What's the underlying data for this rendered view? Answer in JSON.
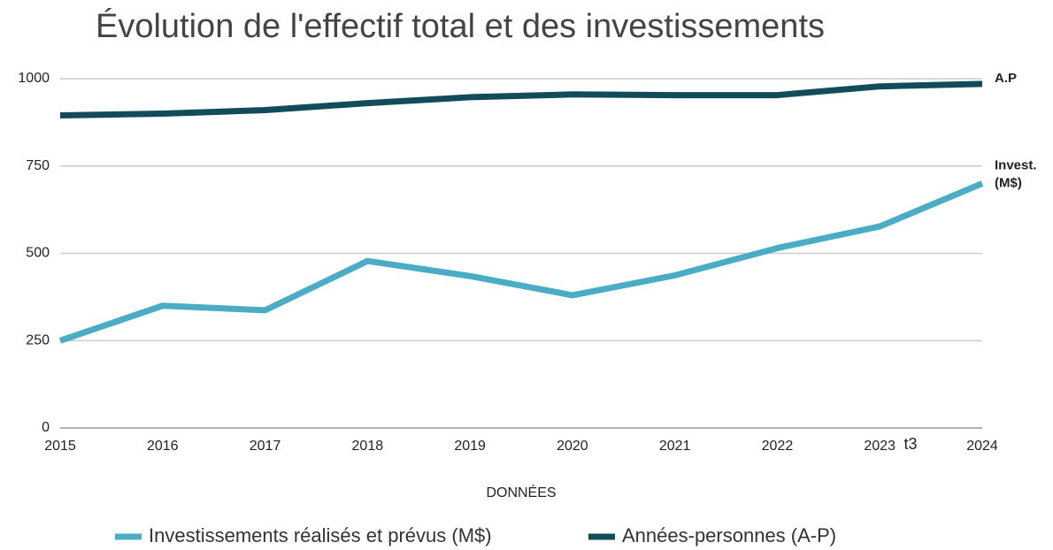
{
  "chart_data": {
    "type": "line",
    "title": "Évolution de l'effectif total et des investissements",
    "x_label": "DONNÉES",
    "categories": [
      "2015",
      "2016",
      "2017",
      "2018",
      "2019",
      "2020",
      "2021",
      "2022",
      "2023",
      "2024"
    ],
    "annotation": "t3",
    "series": [
      {
        "name": "Investissements réalisés et prévus (M$)",
        "color": "#4bacc6",
        "end_label": [
          "Invest.",
          "(M$)"
        ],
        "values": [
          250,
          350,
          337,
          478,
          435,
          380,
          437,
          515,
          577,
          700
        ]
      },
      {
        "name": "Années-personnes (A-P)",
        "color": "#124c5a",
        "end_label": [
          "A.P"
        ],
        "values": [
          895,
          900,
          910,
          930,
          947,
          955,
          953,
          953,
          978,
          985
        ]
      }
    ],
    "ylim": [
      0,
      1000
    ],
    "yticks": [
      0,
      250,
      500,
      750,
      1000
    ],
    "grid": true,
    "legend": "bottom"
  }
}
